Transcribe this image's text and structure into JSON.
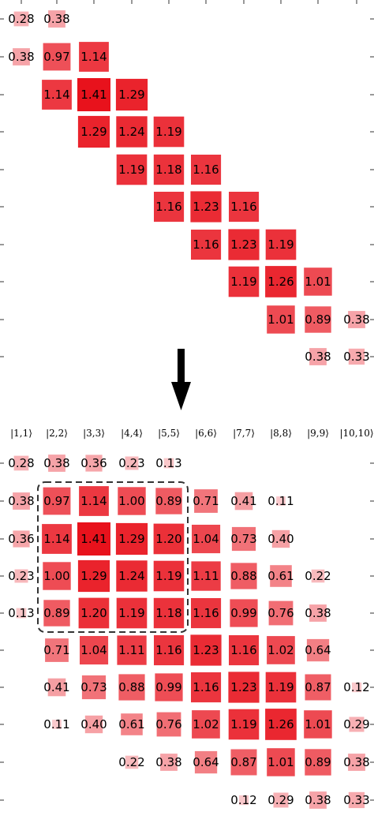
{
  "figure": {
    "top_matrix": {
      "values": [
        [
          0.28,
          0.38,
          null,
          null,
          null,
          null,
          null,
          null,
          null,
          null
        ],
        [
          0.38,
          0.97,
          1.14,
          null,
          null,
          null,
          null,
          null,
          null,
          null
        ],
        [
          null,
          1.14,
          1.41,
          1.29,
          null,
          null,
          null,
          null,
          null,
          null
        ],
        [
          null,
          null,
          1.29,
          1.24,
          1.19,
          null,
          null,
          null,
          null,
          null
        ],
        [
          null,
          null,
          null,
          1.19,
          1.18,
          1.16,
          null,
          null,
          null,
          null
        ],
        [
          null,
          null,
          null,
          null,
          1.16,
          1.23,
          1.16,
          null,
          null,
          null
        ],
        [
          null,
          null,
          null,
          null,
          null,
          1.16,
          1.23,
          1.19,
          null,
          null
        ],
        [
          null,
          null,
          null,
          null,
          null,
          null,
          1.19,
          1.26,
          1.01,
          null
        ],
        [
          null,
          null,
          null,
          null,
          null,
          null,
          null,
          1.01,
          0.89,
          0.38
        ],
        [
          null,
          null,
          null,
          null,
          null,
          null,
          null,
          null,
          0.38,
          0.33
        ]
      ]
    },
    "bottom_matrix": {
      "column_labels": [
        "|1,1⟩",
        "|2,2⟩",
        "|3,3⟩",
        "|4,4⟩",
        "|5,5⟩",
        "|6,6⟩",
        "|7,7⟩",
        "|8,8⟩",
        "|9,9⟩",
        "|10,10⟩"
      ],
      "values": [
        [
          0.28,
          0.38,
          0.36,
          0.23,
          0.13,
          null,
          null,
          null,
          null,
          null
        ],
        [
          0.38,
          0.97,
          1.14,
          1.0,
          0.89,
          0.71,
          0.41,
          0.11,
          null,
          null
        ],
        [
          0.36,
          1.14,
          1.41,
          1.29,
          1.2,
          1.04,
          0.73,
          0.4,
          null,
          null
        ],
        [
          0.23,
          1.0,
          1.29,
          1.24,
          1.19,
          1.11,
          0.88,
          0.61,
          0.22,
          null
        ],
        [
          0.13,
          0.89,
          1.2,
          1.19,
          1.18,
          1.16,
          0.99,
          0.76,
          0.38,
          null
        ],
        [
          null,
          0.71,
          1.04,
          1.11,
          1.16,
          1.23,
          1.16,
          1.02,
          0.64,
          null
        ],
        [
          null,
          0.41,
          0.73,
          0.88,
          0.99,
          1.16,
          1.23,
          1.19,
          0.87,
          0.12
        ],
        [
          null,
          0.11,
          0.4,
          0.61,
          0.76,
          1.02,
          1.19,
          1.26,
          1.01,
          0.29
        ],
        [
          null,
          null,
          null,
          0.22,
          0.38,
          0.64,
          0.87,
          1.01,
          0.89,
          0.38
        ],
        [
          null,
          null,
          null,
          null,
          null,
          null,
          0.12,
          0.29,
          0.38,
          0.33
        ]
      ],
      "highlighted_block": {
        "rows": [
          1,
          4
        ],
        "cols": [
          1,
          4
        ]
      }
    },
    "max_value": 1.41,
    "colors": {
      "cell_low": "#fbd9db",
      "cell_high": "#e8121c",
      "arrow": "#000000",
      "highlight_border": "#333333",
      "tick": "#333333"
    },
    "arrow_icon": "down-arrow"
  }
}
